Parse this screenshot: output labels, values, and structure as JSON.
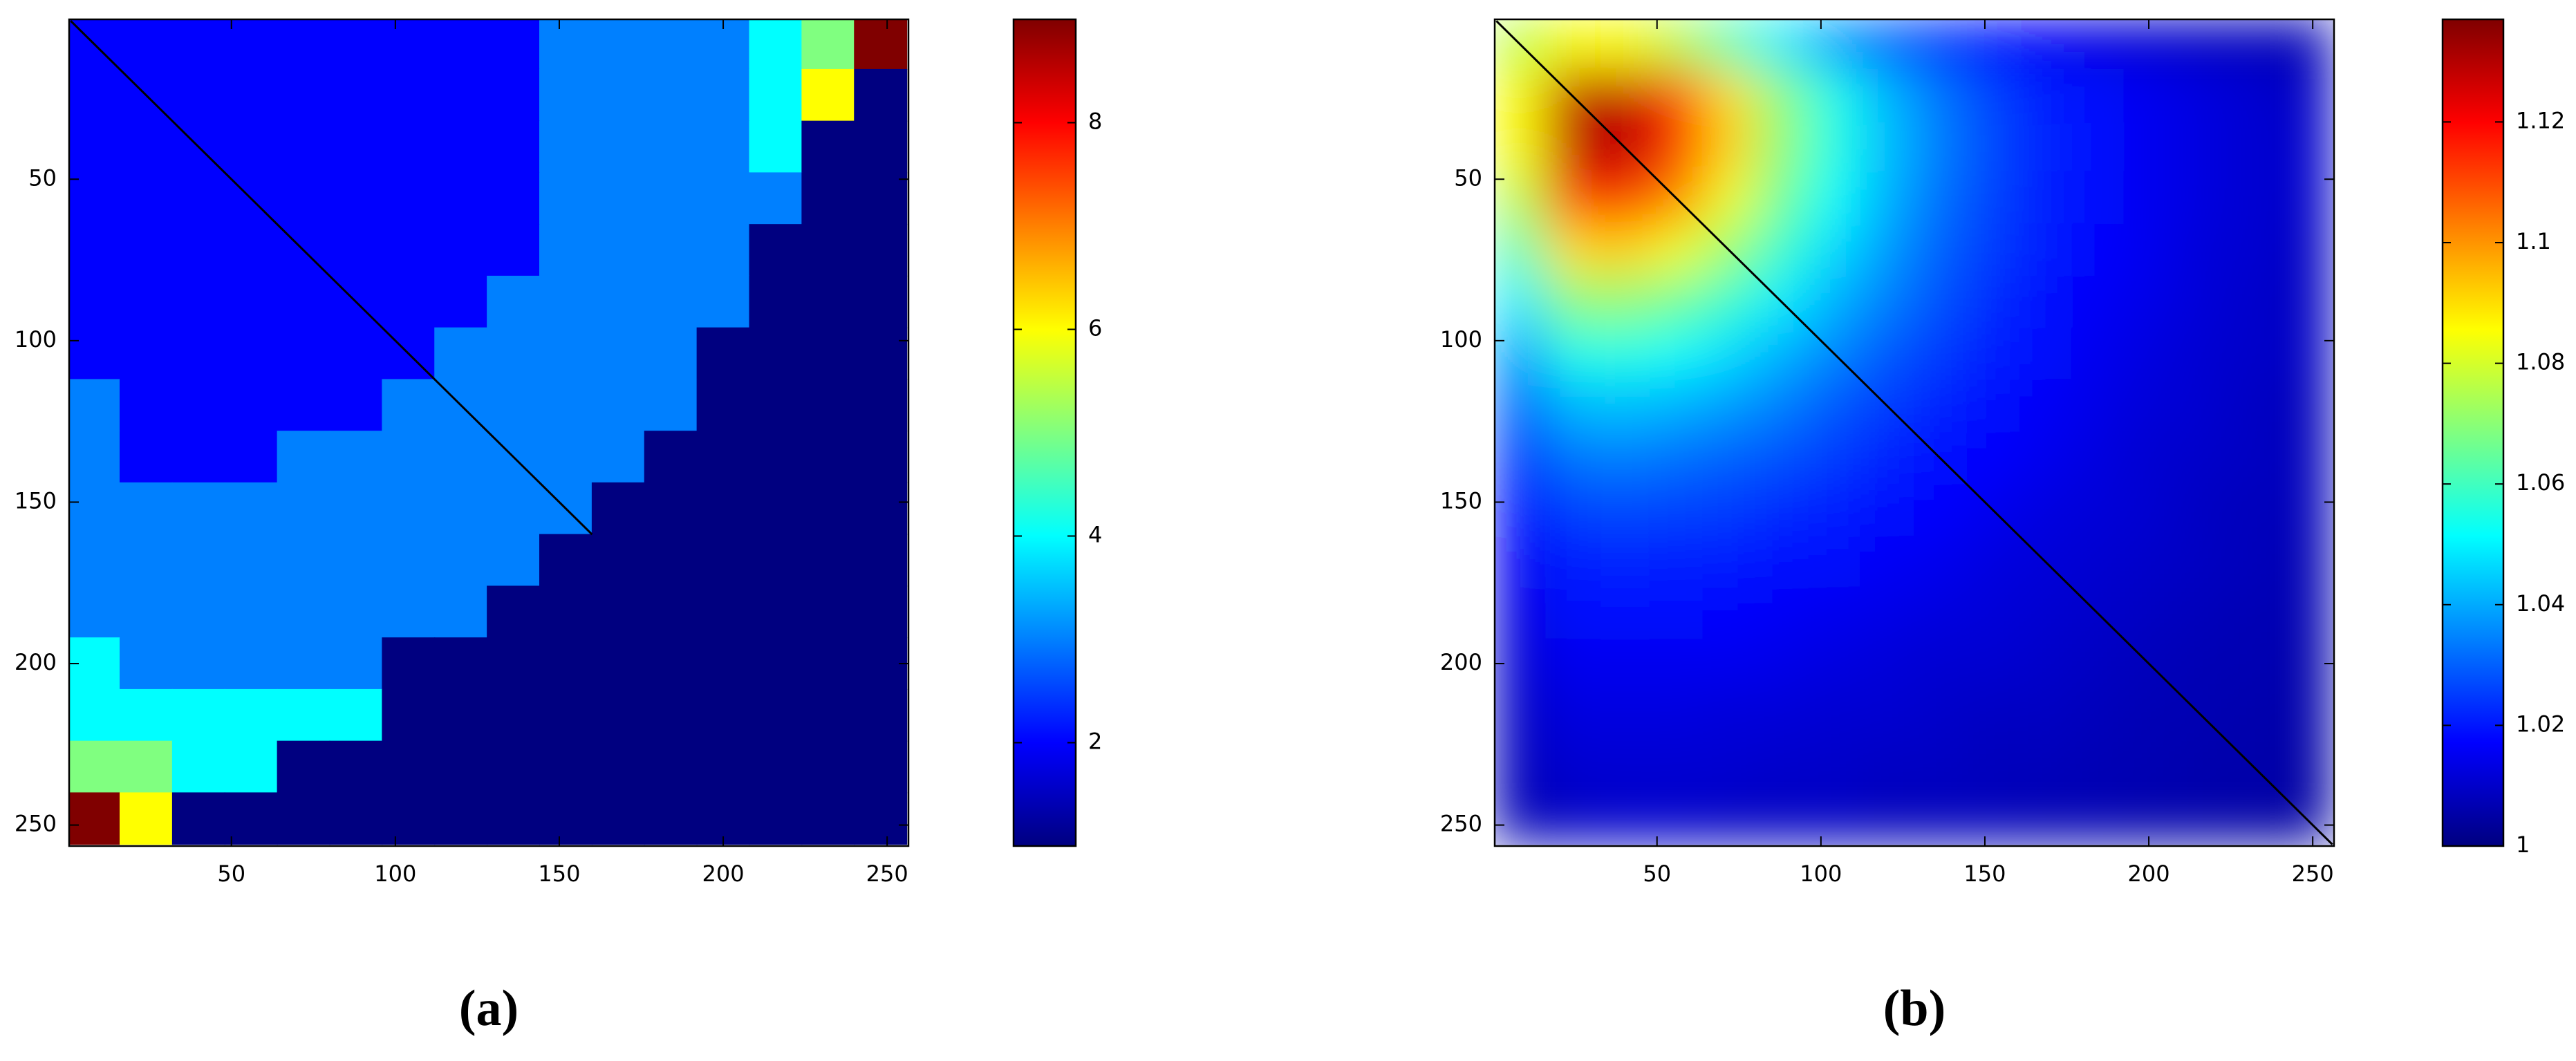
{
  "chart_data": [
    {
      "type": "heatmap",
      "label": "(a)",
      "colormap": "jet",
      "interpolation": "nearest",
      "y_reversed": true,
      "x": [
        8,
        24,
        40,
        56,
        72,
        88,
        104,
        120,
        136,
        152,
        168,
        184,
        200,
        216,
        232,
        248
      ],
      "y": [
        8,
        24,
        40,
        56,
        72,
        88,
        104,
        120,
        136,
        152,
        168,
        184,
        200,
        216,
        232,
        248
      ],
      "values": [
        [
          2,
          2,
          2,
          2,
          2,
          2,
          2,
          2,
          2,
          3,
          3,
          3,
          3,
          4,
          5,
          9
        ],
        [
          2,
          2,
          2,
          2,
          2,
          2,
          2,
          2,
          2,
          3,
          3,
          3,
          3,
          4,
          6,
          1
        ],
        [
          2,
          2,
          2,
          2,
          2,
          2,
          2,
          2,
          2,
          3,
          3,
          3,
          3,
          4,
          1,
          1
        ],
        [
          2,
          2,
          2,
          2,
          2,
          2,
          2,
          2,
          2,
          3,
          3,
          3,
          3,
          3,
          1,
          1
        ],
        [
          2,
          2,
          2,
          2,
          2,
          2,
          2,
          2,
          2,
          3,
          3,
          3,
          3,
          1,
          1,
          1
        ],
        [
          2,
          2,
          2,
          2,
          2,
          2,
          2,
          2,
          3,
          3,
          3,
          3,
          3,
          1,
          1,
          1
        ],
        [
          2,
          2,
          2,
          2,
          2,
          2,
          2,
          3,
          3,
          3,
          3,
          3,
          1,
          1,
          1,
          1
        ],
        [
          3,
          2,
          2,
          2,
          2,
          2,
          3,
          3,
          3,
          3,
          3,
          3,
          1,
          1,
          1,
          1
        ],
        [
          3,
          2,
          2,
          2,
          3,
          3,
          3,
          3,
          3,
          3,
          3,
          1,
          1,
          1,
          1,
          1
        ],
        [
          3,
          3,
          3,
          3,
          3,
          3,
          3,
          3,
          3,
          3,
          1,
          1,
          1,
          1,
          1,
          1
        ],
        [
          3,
          3,
          3,
          3,
          3,
          3,
          3,
          3,
          3,
          1,
          1,
          1,
          1,
          1,
          1,
          1
        ],
        [
          3,
          3,
          3,
          3,
          3,
          3,
          3,
          3,
          1,
          1,
          1,
          1,
          1,
          1,
          1,
          1
        ],
        [
          4,
          3,
          3,
          3,
          3,
          3,
          1,
          1,
          1,
          1,
          1,
          1,
          1,
          1,
          1,
          1
        ],
        [
          4,
          4,
          4,
          4,
          4,
          4,
          1,
          1,
          1,
          1,
          1,
          1,
          1,
          1,
          1,
          1
        ],
        [
          5,
          5,
          4,
          4,
          1,
          1,
          1,
          1,
          1,
          1,
          1,
          1,
          1,
          1,
          1,
          1
        ],
        [
          9,
          6,
          1,
          1,
          1,
          1,
          1,
          1,
          1,
          1,
          1,
          1,
          1,
          1,
          1,
          1
        ]
      ],
      "line": {
        "x": [
          1,
          160
        ],
        "y": [
          1,
          160
        ]
      },
      "xlim": [
        0.5,
        256.5
      ],
      "ylim": [
        0.5,
        256.5
      ],
      "xticks": [
        50,
        100,
        150,
        200,
        250
      ],
      "yticks": [
        50,
        100,
        150,
        200,
        250
      ],
      "clim": [
        1,
        9
      ],
      "cticks": [
        2,
        4,
        6,
        8
      ]
    },
    {
      "type": "heatmap",
      "label": "(b)",
      "colormap": "jet",
      "interpolation": "smooth",
      "y_reversed": true,
      "x": [
        8,
        24,
        40,
        56,
        72,
        88,
        104,
        120,
        136,
        152,
        168,
        184,
        200,
        216,
        232,
        248
      ],
      "y": [
        8,
        24,
        40,
        56,
        72,
        88,
        104,
        120,
        136,
        152,
        168,
        184,
        200,
        216,
        232,
        248
      ],
      "values": [
        [
          1.076,
          1.085,
          1.085,
          1.076,
          1.062,
          1.049,
          1.038,
          1.03,
          1.024,
          1.019,
          1.016,
          1.013,
          1.011,
          1.009,
          1.008,
          1.007
        ],
        [
          1.085,
          1.128,
          1.128,
          1.112,
          1.09,
          1.07,
          1.054,
          1.042,
          1.033,
          1.026,
          1.021,
          1.018,
          1.015,
          1.013,
          1.011,
          1.009
        ],
        [
          1.085,
          1.128,
          1.13,
          1.115,
          1.092,
          1.071,
          1.055,
          1.043,
          1.034,
          1.027,
          1.022,
          1.018,
          1.015,
          1.013,
          1.011,
          1.01
        ],
        [
          1.076,
          1.112,
          1.115,
          1.102,
          1.084,
          1.066,
          1.052,
          1.041,
          1.032,
          1.026,
          1.021,
          1.018,
          1.015,
          1.013,
          1.011,
          1.01
        ],
        [
          1.062,
          1.09,
          1.092,
          1.084,
          1.072,
          1.058,
          1.047,
          1.038,
          1.03,
          1.025,
          1.021,
          1.017,
          1.015,
          1.012,
          1.011,
          1.009
        ],
        [
          1.049,
          1.07,
          1.071,
          1.066,
          1.058,
          1.049,
          1.041,
          1.034,
          1.028,
          1.023,
          1.019,
          1.016,
          1.014,
          1.012,
          1.01,
          1.009
        ],
        [
          1.038,
          1.054,
          1.055,
          1.052,
          1.047,
          1.041,
          1.035,
          1.029,
          1.025,
          1.021,
          1.018,
          1.015,
          1.013,
          1.011,
          1.01,
          1.009
        ],
        [
          1.03,
          1.042,
          1.043,
          1.041,
          1.038,
          1.034,
          1.029,
          1.025,
          1.022,
          1.019,
          1.016,
          1.014,
          1.012,
          1.011,
          1.009,
          1.008
        ],
        [
          1.024,
          1.033,
          1.034,
          1.032,
          1.03,
          1.028,
          1.025,
          1.022,
          1.019,
          1.017,
          1.015,
          1.013,
          1.011,
          1.01,
          1.009,
          1.008
        ],
        [
          1.019,
          1.026,
          1.027,
          1.026,
          1.025,
          1.023,
          1.021,
          1.019,
          1.017,
          1.015,
          1.013,
          1.012,
          1.011,
          1.009,
          1.008,
          1.008
        ],
        [
          1.016,
          1.021,
          1.022,
          1.021,
          1.021,
          1.019,
          1.018,
          1.016,
          1.015,
          1.013,
          1.012,
          1.011,
          1.01,
          1.009,
          1.008,
          1.007
        ],
        [
          1.013,
          1.018,
          1.018,
          1.018,
          1.017,
          1.016,
          1.015,
          1.014,
          1.013,
          1.012,
          1.011,
          1.01,
          1.009,
          1.008,
          1.007,
          1.007
        ],
        [
          1.011,
          1.015,
          1.015,
          1.015,
          1.015,
          1.014,
          1.013,
          1.012,
          1.011,
          1.011,
          1.01,
          1.009,
          1.008,
          1.007,
          1.007,
          1.006
        ],
        [
          1.009,
          1.013,
          1.013,
          1.013,
          1.012,
          1.012,
          1.011,
          1.011,
          1.01,
          1.009,
          1.009,
          1.008,
          1.007,
          1.007,
          1.006,
          1.006
        ],
        [
          1.008,
          1.011,
          1.011,
          1.011,
          1.011,
          1.01,
          1.01,
          1.009,
          1.009,
          1.008,
          1.008,
          1.007,
          1.007,
          1.006,
          1.006,
          1.005
        ],
        [
          1.007,
          1.009,
          1.01,
          1.01,
          1.009,
          1.009,
          1.009,
          1.008,
          1.008,
          1.008,
          1.007,
          1.007,
          1.006,
          1.006,
          1.005,
          1.005
        ]
      ],
      "line": {
        "x": [
          1,
          256
        ],
        "y": [
          1,
          256
        ]
      },
      "xlim": [
        0.5,
        256.5
      ],
      "ylim": [
        0.5,
        256.5
      ],
      "xticks": [
        50,
        100,
        150,
        200,
        250
      ],
      "yticks": [
        50,
        100,
        150,
        200,
        250
      ],
      "clim": [
        1,
        1.137
      ],
      "cticks": [
        1,
        1.02,
        1.04,
        1.06,
        1.08,
        1.1,
        1.12
      ]
    }
  ]
}
